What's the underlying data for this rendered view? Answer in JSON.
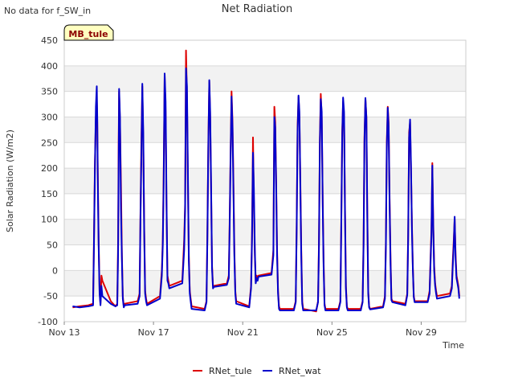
{
  "page": {
    "note": "No data for f_SW_in",
    "badge": "MB_tule"
  },
  "colors": {
    "RNet_tule": "#dd0000",
    "RNet_wat": "#0000cc",
    "band": "#f2f2f2",
    "grid": "#d9d9d9",
    "badge_fill": "#ffffc0"
  },
  "chart_data": {
    "type": "line",
    "title": "Net Radiation",
    "xlabel": "Time",
    "ylabel": "Solar Radiation (W/m2)",
    "ylim": [
      -100,
      450
    ],
    "yticks": [
      -100,
      -50,
      0,
      50,
      100,
      150,
      200,
      250,
      300,
      350,
      400,
      450
    ],
    "xlim": [
      "2023-11-13",
      "2023-12-01"
    ],
    "xticks": [
      {
        "date": "2023-11-13",
        "label": "Nov 13"
      },
      {
        "date": "2023-11-17",
        "label": "Nov 17"
      },
      {
        "date": "2023-11-21",
        "label": "Nov 21"
      },
      {
        "date": "2023-11-25",
        "label": "Nov 25"
      },
      {
        "date": "2023-11-29",
        "label": "Nov 29"
      }
    ],
    "grid": true,
    "legend": "bottom-center",
    "series": [
      {
        "name": "RNet_tule",
        "x": [
          "2023-11-13 09:00",
          "2023-11-13 16:30",
          "2023-11-14 02:00",
          "2023-11-14 07:00",
          "2023-11-14 08:00",
          "2023-11-14 09:00",
          "2023-11-14 10:00",
          "2023-11-14 11:00",
          "2023-11-14 11:30",
          "2023-11-14 12:00",
          "2023-11-14 13:00",
          "2023-11-14 14:00",
          "2023-11-14 15:00",
          "2023-11-14 16:00",
          "2023-11-14 17:00",
          "2023-11-15 02:00",
          "2023-11-15 07:00",
          "2023-11-15 09:00",
          "2023-11-15 10:00",
          "2023-11-15 10:30",
          "2023-11-15 11:00",
          "2023-11-15 12:00",
          "2023-11-15 13:00",
          "2023-11-15 14:00",
          "2023-11-15 15:00",
          "2023-11-15 16:00",
          "2023-11-15 17:00",
          "2023-11-16 07:00",
          "2023-11-16 09:00",
          "2023-11-16 10:00",
          "2023-11-16 11:00",
          "2023-11-16 12:00",
          "2023-11-16 13:00",
          "2023-11-16 14:00",
          "2023-11-16 15:00",
          "2023-11-16 16:00",
          "2023-11-16 17:00",
          "2023-11-17 07:00",
          "2023-11-17 09:00",
          "2023-11-17 10:00",
          "2023-11-17 11:00",
          "2023-11-17 12:00",
          "2023-11-17 13:00",
          "2023-11-17 14:00",
          "2023-11-17 15:00",
          "2023-11-17 16:00",
          "2023-11-17 17:00",
          "2023-11-18 07:00",
          "2023-11-18 09:00",
          "2023-11-18 10:00",
          "2023-11-18 11:00",
          "2023-11-18 12:00",
          "2023-11-18 13:00",
          "2023-11-18 14:00",
          "2023-11-18 15:00",
          "2023-11-18 16:00",
          "2023-11-18 17:00",
          "2023-11-19 07:00",
          "2023-11-19 09:00",
          "2023-11-19 10:00",
          "2023-11-19 11:00",
          "2023-11-19 12:00",
          "2023-11-19 13:00",
          "2023-11-19 14:00",
          "2023-11-19 15:00",
          "2023-11-19 16:00",
          "2023-11-19 17:00",
          "2023-11-20 07:00",
          "2023-11-20 09:00",
          "2023-11-20 10:00",
          "2023-11-20 11:00",
          "2023-11-20 12:00",
          "2023-11-20 13:00",
          "2023-11-20 14:00",
          "2023-11-20 15:00",
          "2023-11-20 16:00",
          "2023-11-20 17:00",
          "2023-11-21 07:00",
          "2023-11-21 09:00",
          "2023-11-21 10:00",
          "2023-11-21 11:00",
          "2023-11-21 12:00",
          "2023-11-21 13:00",
          "2023-11-21 14:00",
          "2023-11-21 15:00",
          "2023-11-21 16:00",
          "2023-11-21 17:00",
          "2023-11-22 07:00",
          "2023-11-22 09:00",
          "2023-11-22 10:00",
          "2023-11-22 11:00",
          "2023-11-22 12:00",
          "2023-11-22 13:00",
          "2023-11-22 14:00",
          "2023-11-22 15:00",
          "2023-11-22 16:00",
          "2023-11-22 17:00",
          "2023-11-23 07:00",
          "2023-11-23 09:00",
          "2023-11-23 10:00",
          "2023-11-23 11:00",
          "2023-11-23 12:00",
          "2023-11-23 13:00",
          "2023-11-23 14:00",
          "2023-11-23 15:00",
          "2023-11-23 16:00",
          "2023-11-23 17:00",
          "2023-11-24 07:00",
          "2023-11-24 09:00",
          "2023-11-24 10:00",
          "2023-11-24 11:00",
          "2023-11-24 12:00",
          "2023-11-24 13:00",
          "2023-11-24 14:00",
          "2023-11-24 15:00",
          "2023-11-24 16:00",
          "2023-11-24 17:00",
          "2023-11-25 07:00",
          "2023-11-25 09:00",
          "2023-11-25 10:00",
          "2023-11-25 11:00",
          "2023-11-25 12:00",
          "2023-11-25 13:00",
          "2023-11-25 14:00",
          "2023-11-25 15:00",
          "2023-11-25 16:00",
          "2023-11-25 17:00",
          "2023-11-26 07:00",
          "2023-11-26 09:00",
          "2023-11-26 10:00",
          "2023-11-26 11:00",
          "2023-11-26 12:00",
          "2023-11-26 13:00",
          "2023-11-26 14:00",
          "2023-11-26 15:00",
          "2023-11-26 16:00",
          "2023-11-26 17:00",
          "2023-11-27 07:00",
          "2023-11-27 09:00",
          "2023-11-27 10:00",
          "2023-11-27 11:00",
          "2023-11-27 12:00",
          "2023-11-27 13:00",
          "2023-11-27 14:00",
          "2023-11-27 15:00",
          "2023-11-27 16:00",
          "2023-11-27 17:00",
          "2023-11-28 07:00",
          "2023-11-28 09:00",
          "2023-11-28 10:00",
          "2023-11-28 11:00",
          "2023-11-28 12:00",
          "2023-11-28 13:00",
          "2023-11-28 14:00",
          "2023-11-28 15:00",
          "2023-11-28 16:00",
          "2023-11-28 17:00",
          "2023-11-29 07:00",
          "2023-11-29 09:00",
          "2023-11-29 10:00",
          "2023-11-29 11:00",
          "2023-11-29 12:00",
          "2023-11-29 13:00",
          "2023-11-29 14:00",
          "2023-11-29 15:00",
          "2023-11-29 16:00",
          "2023-11-29 17:00",
          "2023-11-30 07:00",
          "2023-11-30 09:00",
          "2023-11-30 10:00",
          "2023-11-30 11:00",
          "2023-11-30 12:00",
          "2023-11-30 13:00",
          "2023-11-30 14:00",
          "2023-11-30 15:00",
          "2023-11-30 16:00",
          "2023-11-30 17:00"
        ],
        "y": [
          -72,
          -70,
          -68,
          -65,
          60,
          210,
          300,
          330,
          290,
          200,
          60,
          -40,
          -65,
          -10,
          -20,
          -60,
          -70,
          -65,
          60,
          245,
          350,
          290,
          170,
          30,
          -50,
          -70,
          -65,
          -60,
          -45,
          110,
          260,
          360,
          250,
          90,
          -40,
          -55,
          -65,
          -50,
          0,
          60,
          190,
          380,
          310,
          130,
          -10,
          -20,
          -30,
          -20,
          60,
          130,
          430,
          340,
          180,
          30,
          -40,
          -55,
          -70,
          -75,
          -60,
          70,
          250,
          370,
          300,
          150,
          10,
          -30,
          -30,
          -25,
          -10,
          100,
          240,
          350,
          290,
          180,
          40,
          -40,
          -60,
          -70,
          -30,
          70,
          260,
          140,
          30,
          -20,
          -10,
          -15,
          -10,
          -5,
          40,
          320,
          290,
          170,
          40,
          -40,
          -70,
          -75,
          -75,
          -75,
          -60,
          90,
          280,
          340,
          300,
          170,
          40,
          -60,
          -75,
          -80,
          -60,
          50,
          260,
          345,
          300,
          140,
          20,
          -65,
          -75,
          -75,
          -60,
          90,
          270,
          330,
          300,
          130,
          -30,
          -70,
          -75,
          -75,
          -60,
          60,
          260,
          335,
          300,
          120,
          -40,
          -70,
          -75,
          -70,
          -50,
          60,
          250,
          320,
          290,
          140,
          20,
          -55,
          -60,
          -65,
          -45,
          70,
          270,
          290,
          200,
          90,
          10,
          -50,
          -60,
          -60,
          -40,
          20,
          80,
          210,
          90,
          10,
          -25,
          -40,
          -50,
          -45,
          -30,
          20,
          60,
          100,
          30,
          -10,
          -20,
          -30,
          -50
        ]
      },
      {
        "name": "RNet_wat",
        "x": [
          "2023-11-13 09:00",
          "2023-11-13 16:30",
          "2023-11-14 02:00",
          "2023-11-14 07:00",
          "2023-11-14 08:00",
          "2023-11-14 09:00",
          "2023-11-14 10:00",
          "2023-11-14 11:00",
          "2023-11-14 11:30",
          "2023-11-14 12:00",
          "2023-11-14 13:00",
          "2023-11-14 14:00",
          "2023-11-14 15:00",
          "2023-11-14 16:00",
          "2023-11-14 17:00",
          "2023-11-15 02:00",
          "2023-11-15 07:00",
          "2023-11-15 09:00",
          "2023-11-15 10:00",
          "2023-11-15 10:30",
          "2023-11-15 11:00",
          "2023-11-15 12:00",
          "2023-11-15 13:00",
          "2023-11-15 14:00",
          "2023-11-15 15:00",
          "2023-11-15 16:00",
          "2023-11-15 17:00",
          "2023-11-16 07:00",
          "2023-11-16 09:00",
          "2023-11-16 10:00",
          "2023-11-16 11:00",
          "2023-11-16 12:00",
          "2023-11-16 13:00",
          "2023-11-16 14:00",
          "2023-11-16 15:00",
          "2023-11-16 16:00",
          "2023-11-16 17:00",
          "2023-11-17 07:00",
          "2023-11-17 09:00",
          "2023-11-17 10:00",
          "2023-11-17 11:00",
          "2023-11-17 12:00",
          "2023-11-17 13:00",
          "2023-11-17 14:00",
          "2023-11-17 15:00",
          "2023-11-17 16:00",
          "2023-11-17 17:00",
          "2023-11-18 07:00",
          "2023-11-18 09:00",
          "2023-11-18 10:00",
          "2023-11-18 11:00",
          "2023-11-18 12:00",
          "2023-11-18 13:00",
          "2023-11-18 14:00",
          "2023-11-18 15:00",
          "2023-11-18 16:00",
          "2023-11-18 17:00",
          "2023-11-19 07:00",
          "2023-11-19 09:00",
          "2023-11-19 10:00",
          "2023-11-19 11:00",
          "2023-11-19 12:00",
          "2023-11-19 13:00",
          "2023-11-19 14:00",
          "2023-11-19 15:00",
          "2023-11-19 16:00",
          "2023-11-19 17:00",
          "2023-11-20 07:00",
          "2023-11-20 09:00",
          "2023-11-20 10:00",
          "2023-11-20 11:00",
          "2023-11-20 12:00",
          "2023-11-20 13:00",
          "2023-11-20 14:00",
          "2023-11-20 15:00",
          "2023-11-20 16:00",
          "2023-11-20 17:00",
          "2023-11-21 07:00",
          "2023-11-21 09:00",
          "2023-11-21 10:00",
          "2023-11-21 11:00",
          "2023-11-21 12:00",
          "2023-11-21 13:00",
          "2023-11-21 14:00",
          "2023-11-21 15:00",
          "2023-11-21 16:00",
          "2023-11-21 17:00",
          "2023-11-22 07:00",
          "2023-11-22 09:00",
          "2023-11-22 10:00",
          "2023-11-22 11:00",
          "2023-11-22 12:00",
          "2023-11-22 13:00",
          "2023-11-22 14:00",
          "2023-11-22 15:00",
          "2023-11-22 16:00",
          "2023-11-22 17:00",
          "2023-11-23 07:00",
          "2023-11-23 09:00",
          "2023-11-23 10:00",
          "2023-11-23 11:00",
          "2023-11-23 12:00",
          "2023-11-23 13:00",
          "2023-11-23 14:00",
          "2023-11-23 15:00",
          "2023-11-23 16:00",
          "2023-11-23 17:00",
          "2023-11-24 07:00",
          "2023-11-24 09:00",
          "2023-11-24 10:00",
          "2023-11-24 11:00",
          "2023-11-24 12:00",
          "2023-11-24 13:00",
          "2023-11-24 14:00",
          "2023-11-24 15:00",
          "2023-11-24 16:00",
          "2023-11-24 17:00",
          "2023-11-25 07:00",
          "2023-11-25 09:00",
          "2023-11-25 10:00",
          "2023-11-25 11:00",
          "2023-11-25 12:00",
          "2023-11-25 13:00",
          "2023-11-25 14:00",
          "2023-11-25 15:00",
          "2023-11-25 16:00",
          "2023-11-25 17:00",
          "2023-11-26 07:00",
          "2023-11-26 09:00",
          "2023-11-26 10:00",
          "2023-11-26 11:00",
          "2023-11-26 12:00",
          "2023-11-26 13:00",
          "2023-11-26 14:00",
          "2023-11-26 15:00",
          "2023-11-26 16:00",
          "2023-11-26 17:00",
          "2023-11-27 07:00",
          "2023-11-27 09:00",
          "2023-11-27 10:00",
          "2023-11-27 11:00",
          "2023-11-27 12:00",
          "2023-11-27 13:00",
          "2023-11-27 14:00",
          "2023-11-27 15:00",
          "2023-11-27 16:00",
          "2023-11-27 17:00",
          "2023-11-28 07:00",
          "2023-11-28 09:00",
          "2023-11-28 10:00",
          "2023-11-28 11:00",
          "2023-11-28 12:00",
          "2023-11-28 13:00",
          "2023-11-28 14:00",
          "2023-11-28 15:00",
          "2023-11-28 16:00",
          "2023-11-28 17:00",
          "2023-11-29 07:00",
          "2023-11-29 09:00",
          "2023-11-29 10:00",
          "2023-11-29 11:00",
          "2023-11-29 12:00",
          "2023-11-29 13:00",
          "2023-11-29 14:00",
          "2023-11-29 15:00",
          "2023-11-29 16:00",
          "2023-11-29 17:00",
          "2023-11-30 07:00",
          "2023-11-30 09:00",
          "2023-11-30 10:00",
          "2023-11-30 11:00",
          "2023-11-30 12:00",
          "2023-11-30 13:00",
          "2023-11-30 14:00",
          "2023-11-30 15:00",
          "2023-11-30 16:00",
          "2023-11-30 17:00"
        ],
        "y": [
          -70,
          -72,
          -70,
          -68,
          50,
          200,
          320,
          360,
          300,
          180,
          50,
          -45,
          -68,
          -30,
          -50,
          -65,
          -70,
          -68,
          40,
          200,
          355,
          300,
          120,
          20,
          -55,
          -72,
          -68,
          -65,
          -50,
          100,
          230,
          365,
          270,
          80,
          -45,
          -60,
          -68,
          -55,
          -10,
          50,
          170,
          385,
          330,
          140,
          -20,
          -25,
          -35,
          -25,
          40,
          120,
          395,
          360,
          200,
          20,
          -45,
          -60,
          -75,
          -78,
          -62,
          60,
          240,
          372,
          310,
          160,
          5,
          -35,
          -32,
          -28,
          -15,
          90,
          230,
          340,
          280,
          160,
          30,
          -45,
          -65,
          -72,
          -35,
          60,
          230,
          160,
          40,
          -25,
          -15,
          -20,
          -12,
          -8,
          30,
          300,
          280,
          160,
          30,
          -45,
          -75,
          -78,
          -78,
          -78,
          -62,
          80,
          270,
          342,
          310,
          160,
          30,
          -65,
          -78,
          -78,
          -62,
          40,
          250,
          335,
          310,
          130,
          10,
          -68,
          -78,
          -78,
          -62,
          80,
          260,
          338,
          310,
          120,
          -35,
          -72,
          -78,
          -78,
          -62,
          50,
          250,
          337,
          300,
          110,
          -45,
          -72,
          -76,
          -72,
          -55,
          50,
          240,
          318,
          280,
          130,
          10,
          -58,
          -62,
          -68,
          -48,
          60,
          260,
          295,
          210,
          80,
          5,
          -52,
          -62,
          -62,
          -45,
          10,
          70,
          205,
          80,
          0,
          -30,
          -45,
          -55,
          -50,
          -35,
          10,
          50,
          105,
          20,
          -15,
          -25,
          -35,
          -55
        ]
      }
    ]
  }
}
